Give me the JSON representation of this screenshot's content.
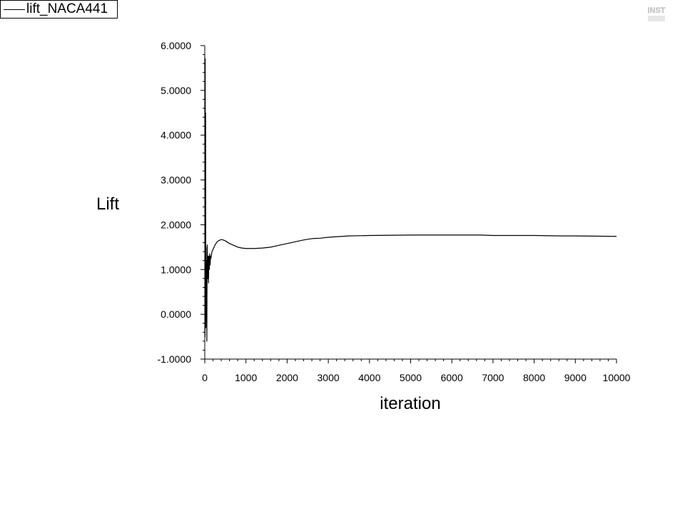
{
  "legend": {
    "entries": [
      "lift_NACA441"
    ]
  },
  "chart_data": {
    "type": "line",
    "title": "",
    "xlabel": "iteration",
    "ylabel": "Lift",
    "xlim": [
      0,
      10000
    ],
    "ylim": [
      -1.0,
      6.0
    ],
    "xticks": [
      0,
      1000,
      2000,
      3000,
      4000,
      5000,
      6000,
      7000,
      8000,
      9000,
      10000
    ],
    "xtick_labels": [
      "0",
      "1000",
      "2000",
      "3000",
      "4000",
      "5000",
      "6000",
      "7000",
      "8000",
      "9000",
      "10000"
    ],
    "yticks": [
      -1.0,
      0.0,
      1.0,
      2.0,
      3.0,
      4.0,
      5.0,
      6.0
    ],
    "ytick_labels": [
      "-1.0000",
      "0.0000",
      "1.0000",
      "2.0000",
      "3.0000",
      "4.0000",
      "5.0000",
      "6.0000"
    ],
    "grid": false,
    "legend_position": "top-left",
    "series": [
      {
        "name": "lift_NACA441",
        "color": "#000000",
        "x": [
          0,
          5,
          10,
          15,
          20,
          25,
          30,
          35,
          40,
          50,
          55,
          60,
          70,
          80,
          90,
          100,
          110,
          120,
          130,
          140,
          150,
          175,
          200,
          250,
          300,
          350,
          400,
          450,
          500,
          550,
          600,
          700,
          800,
          900,
          1000,
          1100,
          1200,
          1400,
          1600,
          1800,
          2000,
          2200,
          2400,
          2600,
          2800,
          3000,
          3500,
          4000,
          5000,
          6000,
          6700,
          7000,
          8000,
          8700,
          9000,
          10000
        ],
        "y": [
          5.75,
          -0.5,
          5.7,
          0.2,
          4.5,
          -0.3,
          1.5,
          0.4,
          1.2,
          -0.6,
          0.9,
          1.55,
          0.8,
          1.3,
          0.7,
          1.3,
          1.0,
          1.35,
          1.1,
          1.3,
          1.25,
          1.4,
          1.45,
          1.55,
          1.62,
          1.65,
          1.67,
          1.66,
          1.64,
          1.61,
          1.58,
          1.54,
          1.5,
          1.48,
          1.47,
          1.47,
          1.47,
          1.48,
          1.5,
          1.54,
          1.58,
          1.62,
          1.66,
          1.69,
          1.7,
          1.72,
          1.75,
          1.76,
          1.77,
          1.77,
          1.77,
          1.76,
          1.76,
          1.75,
          1.75,
          1.74
        ]
      }
    ]
  }
}
